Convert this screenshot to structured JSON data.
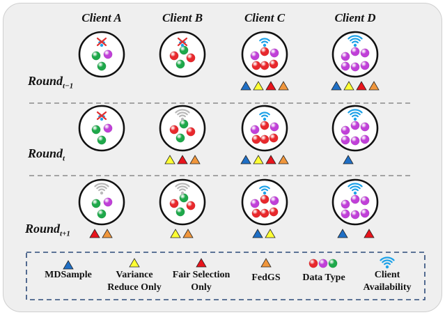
{
  "clients": [
    "Client A",
    "Client B",
    "Client C",
    "Client D"
  ],
  "rounds": [
    {
      "base": "Round",
      "subscript": "t−1"
    },
    {
      "base": "Round",
      "subscript": "t"
    },
    {
      "base": "Round",
      "subscript": "t+1"
    }
  ],
  "legend": {
    "mdsample": "MDSample",
    "variance_line1": "Variance",
    "variance_line2": "Reduce Only",
    "fair_line1": "Fair Selection",
    "fair_line2": "Only",
    "fedgs": "FedGS",
    "data_type": "Data Type",
    "availability_line1": "Client",
    "availability_line2": "Availability"
  },
  "colors": {
    "mdsample": "#1f6fc5",
    "variance": "#ffff33",
    "fair": "#e8141c",
    "fedgs": "#f0963c",
    "red_data": "#e8282c",
    "purple_data": "#c040d8",
    "green_data": "#1ea84a",
    "wifi_strong": "#1ea2e8",
    "wifi_weak": "#b9b9b9",
    "unavailable": "#e03030"
  },
  "icons": [
    "wifi-icon",
    "unavailable-x-icon",
    "triangle-marker-icon",
    "data-ball-icon"
  ]
}
